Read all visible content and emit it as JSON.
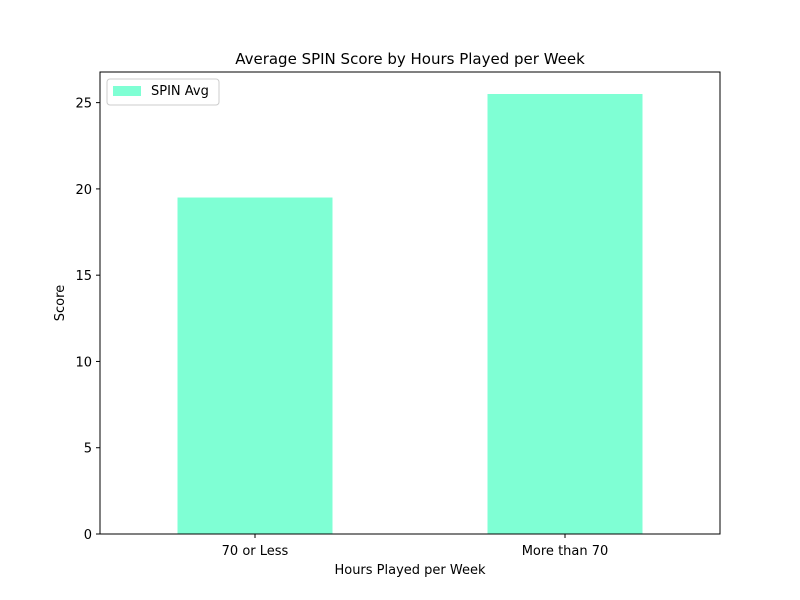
{
  "chart_data": {
    "type": "bar",
    "title": "Average SPIN Score by Hours Played per Week",
    "xlabel": "Hours Played per Week",
    "ylabel": "Score",
    "categories": [
      "70 or Less",
      "More than 70"
    ],
    "series": [
      {
        "name": "SPIN Avg",
        "values": [
          19.5,
          25.5
        ],
        "color": "#7fffd4"
      }
    ],
    "ylim": [
      0,
      26.775
    ],
    "yticks": [
      0,
      5,
      10,
      15,
      20,
      25
    ],
    "grid": false,
    "legend_position": "top-left"
  }
}
